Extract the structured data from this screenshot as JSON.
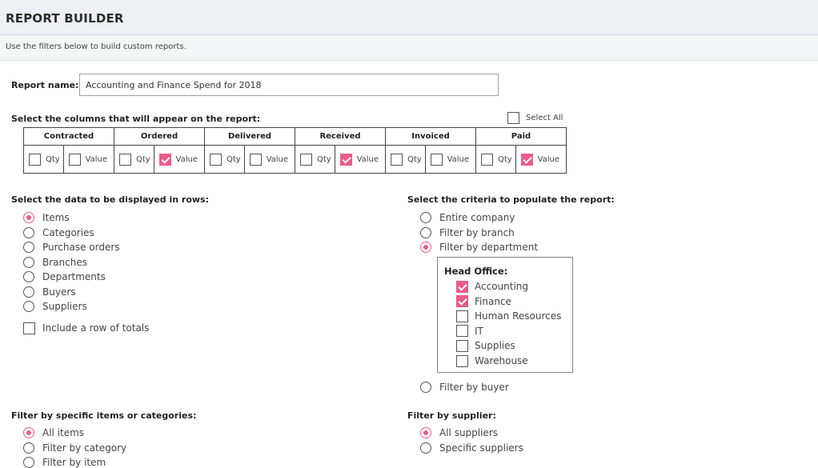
{
  "header": {
    "title": "REPORT BUILDER"
  },
  "subheader": {
    "text": "Use the filters below to build custom reports."
  },
  "report_name": {
    "label": "Report name:",
    "value": "Accounting and Finance Spend for 2018"
  },
  "columns_section": {
    "heading": "Select the columns that will appear on the report:",
    "select_all": {
      "label": "Select All",
      "checked": false
    },
    "groups": [
      {
        "name": "Contracted",
        "qty_label": "Qty",
        "value_label": "Value",
        "qty": false,
        "value": false
      },
      {
        "name": "Ordered",
        "qty_label": "Qty",
        "value_label": "Value",
        "qty": false,
        "value": true
      },
      {
        "name": "Delivered",
        "qty_label": "Qty",
        "value_label": "Value",
        "qty": false,
        "value": false
      },
      {
        "name": "Received",
        "qty_label": "Qty",
        "value_label": "Value",
        "qty": false,
        "value": true
      },
      {
        "name": "Invoiced",
        "qty_label": "Qty",
        "value_label": "Value",
        "qty": false,
        "value": false
      },
      {
        "name": "Paid",
        "qty_label": "Qty",
        "value_label": "Value",
        "qty": false,
        "value": true
      }
    ]
  },
  "rows_section": {
    "heading": "Select the data to be displayed in rows:",
    "options": [
      {
        "label": "Items",
        "selected": true
      },
      {
        "label": "Categories",
        "selected": false
      },
      {
        "label": "Purchase orders",
        "selected": false
      },
      {
        "label": "Branches",
        "selected": false
      },
      {
        "label": "Departments",
        "selected": false
      },
      {
        "label": "Buyers",
        "selected": false
      },
      {
        "label": "Suppliers",
        "selected": false
      }
    ],
    "totals": {
      "label": "Include a row of totals",
      "checked": false
    }
  },
  "criteria_section": {
    "heading": "Select the criteria to populate the report:",
    "options": [
      {
        "label": "Entire company",
        "selected": false
      },
      {
        "label": "Filter by branch",
        "selected": false
      },
      {
        "label": "Filter by department",
        "selected": true
      }
    ],
    "department_box": {
      "title": "Head Office:",
      "departments": [
        {
          "label": "Accounting",
          "checked": true
        },
        {
          "label": "Finance",
          "checked": true
        },
        {
          "label": "Human Resources",
          "checked": false
        },
        {
          "label": "IT",
          "checked": false
        },
        {
          "label": "Supplies",
          "checked": false
        },
        {
          "label": "Warehouse",
          "checked": false
        }
      ]
    },
    "buyer_option": {
      "label": "Filter by buyer",
      "selected": false
    }
  },
  "items_filter": {
    "heading": "Filter by specific items or categories:",
    "options": [
      {
        "label": "All items",
        "selected": true
      },
      {
        "label": "Filter by category",
        "selected": false
      },
      {
        "label": "Filter by item",
        "selected": false
      }
    ]
  },
  "supplier_filter": {
    "heading": "Filter by supplier:",
    "options": [
      {
        "label": "All suppliers",
        "selected": true
      },
      {
        "label": "Specific suppliers",
        "selected": false
      }
    ]
  },
  "colors": {
    "accent": "#ea5b8c",
    "header_bg": "#edf1f4"
  }
}
